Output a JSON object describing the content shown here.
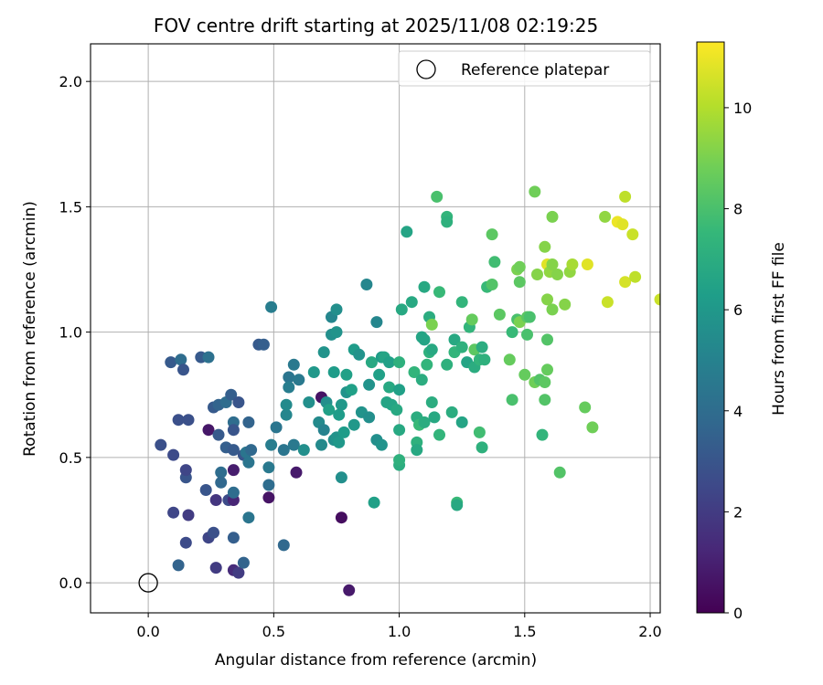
{
  "chart_data": {
    "type": "scatter",
    "title": "FOV centre drift starting at 2025/11/08 02:19:25",
    "xlabel": "Angular distance from reference (arcmin)",
    "ylabel": "Rotation from reference (arcmin)",
    "xlim": [
      -0.23,
      2.04
    ],
    "ylim": [
      -0.12,
      2.15
    ],
    "xticks": [
      0.0,
      0.5,
      1.0,
      1.5,
      2.0
    ],
    "xtick_labels": [
      "0.0",
      "0.5",
      "1.0",
      "1.5",
      "2.0"
    ],
    "yticks": [
      0.0,
      0.5,
      1.0,
      1.5,
      2.0
    ],
    "ytick_labels": [
      "0.0",
      "0.5",
      "1.0",
      "1.5",
      "2.0"
    ],
    "grid": true,
    "legend": {
      "position": "top-right",
      "label": "Reference platepar"
    },
    "reference_point": {
      "x": 0.0,
      "y": 0.0
    },
    "colorbar": {
      "label": "Hours from first FF file",
      "min": 0,
      "max": 11.3,
      "ticks": [
        0,
        2,
        4,
        6,
        8,
        10
      ],
      "tick_labels": [
        "0",
        "2",
        "4",
        "6",
        "8",
        "10"
      ],
      "colormap": [
        "#440154",
        "#482878",
        "#3e4989",
        "#31688e",
        "#26828e",
        "#1f9e89",
        "#35b779",
        "#6ece58",
        "#b5de2b",
        "#fde725"
      ]
    },
    "points": [
      {
        "x": 0.05,
        "y": 0.55,
        "h": 2.8
      },
      {
        "x": 0.09,
        "y": 0.88,
        "h": 3.2
      },
      {
        "x": 0.1,
        "y": 0.51,
        "h": 2.6
      },
      {
        "x": 0.1,
        "y": 0.28,
        "h": 2.4
      },
      {
        "x": 0.12,
        "y": 0.65,
        "h": 2.8
      },
      {
        "x": 0.12,
        "y": 0.07,
        "h": 3.6
      },
      {
        "x": 0.13,
        "y": 0.89,
        "h": 4.0
      },
      {
        "x": 0.14,
        "y": 0.85,
        "h": 3.0
      },
      {
        "x": 0.15,
        "y": 0.42,
        "h": 3.0
      },
      {
        "x": 0.15,
        "y": 0.45,
        "h": 2.4
      },
      {
        "x": 0.16,
        "y": 0.65,
        "h": 2.8
      },
      {
        "x": 0.15,
        "y": 0.16,
        "h": 2.6
      },
      {
        "x": 0.16,
        "y": 0.27,
        "h": 2.0
      },
      {
        "x": 0.21,
        "y": 0.9,
        "h": 3.2
      },
      {
        "x": 0.23,
        "y": 0.37,
        "h": 3.0
      },
      {
        "x": 0.24,
        "y": 0.61,
        "h": 0.7
      },
      {
        "x": 0.24,
        "y": 0.9,
        "h": 4.2
      },
      {
        "x": 0.24,
        "y": 0.18,
        "h": 2.4
      },
      {
        "x": 0.26,
        "y": 0.7,
        "h": 3.2
      },
      {
        "x": 0.26,
        "y": 0.2,
        "h": 2.8
      },
      {
        "x": 0.27,
        "y": 0.33,
        "h": 1.8
      },
      {
        "x": 0.27,
        "y": 0.06,
        "h": 2.0
      },
      {
        "x": 0.28,
        "y": 0.59,
        "h": 3.2
      },
      {
        "x": 0.28,
        "y": 0.71,
        "h": 3.6
      },
      {
        "x": 0.29,
        "y": 0.44,
        "h": 4.0
      },
      {
        "x": 0.29,
        "y": 0.4,
        "h": 3.8
      },
      {
        "x": 0.31,
        "y": 0.72,
        "h": 4.0
      },
      {
        "x": 0.31,
        "y": 0.54,
        "h": 3.4
      },
      {
        "x": 0.32,
        "y": 0.33,
        "h": 2.6
      },
      {
        "x": 0.33,
        "y": 0.75,
        "h": 3.4
      },
      {
        "x": 0.34,
        "y": 0.45,
        "h": 0.9
      },
      {
        "x": 0.34,
        "y": 0.33,
        "h": 1.2
      },
      {
        "x": 0.34,
        "y": 0.18,
        "h": 3.4
      },
      {
        "x": 0.34,
        "y": 0.64,
        "h": 4.0
      },
      {
        "x": 0.34,
        "y": 0.05,
        "h": 1.4
      },
      {
        "x": 0.34,
        "y": 0.61,
        "h": 3.0
      },
      {
        "x": 0.34,
        "y": 0.36,
        "h": 4.0
      },
      {
        "x": 0.34,
        "y": 0.53,
        "h": 3.2
      },
      {
        "x": 0.36,
        "y": 0.04,
        "h": 2.0
      },
      {
        "x": 0.36,
        "y": 0.72,
        "h": 3.0
      },
      {
        "x": 0.38,
        "y": 0.51,
        "h": 3.0
      },
      {
        "x": 0.38,
        "y": 0.08,
        "h": 3.6
      },
      {
        "x": 0.39,
        "y": 0.52,
        "h": 4.4
      },
      {
        "x": 0.4,
        "y": 0.64,
        "h": 3.6
      },
      {
        "x": 0.4,
        "y": 0.26,
        "h": 4.4
      },
      {
        "x": 0.4,
        "y": 0.48,
        "h": 4.4
      },
      {
        "x": 0.41,
        "y": 0.53,
        "h": 3.8
      },
      {
        "x": 0.44,
        "y": 0.95,
        "h": 3.2
      },
      {
        "x": 0.46,
        "y": 0.95,
        "h": 3.4
      },
      {
        "x": 0.48,
        "y": 0.39,
        "h": 4.0
      },
      {
        "x": 0.48,
        "y": 0.34,
        "h": 0.6
      },
      {
        "x": 0.49,
        "y": 0.55,
        "h": 4.8
      },
      {
        "x": 0.48,
        "y": 0.46,
        "h": 4.6
      },
      {
        "x": 0.49,
        "y": 1.1,
        "h": 4.8
      },
      {
        "x": 0.51,
        "y": 0.62,
        "h": 4.4
      },
      {
        "x": 0.54,
        "y": 0.53,
        "h": 4.4
      },
      {
        "x": 0.54,
        "y": 0.15,
        "h": 3.8
      },
      {
        "x": 0.55,
        "y": 0.67,
        "h": 5.2
      },
      {
        "x": 0.55,
        "y": 0.71,
        "h": 5.4
      },
      {
        "x": 0.56,
        "y": 0.82,
        "h": 4.4
      },
      {
        "x": 0.56,
        "y": 0.78,
        "h": 4.8
      },
      {
        "x": 0.58,
        "y": 0.55,
        "h": 4.6
      },
      {
        "x": 0.58,
        "y": 0.87,
        "h": 4.6
      },
      {
        "x": 0.59,
        "y": 0.44,
        "h": 0.8
      },
      {
        "x": 0.6,
        "y": 0.81,
        "h": 4.6
      },
      {
        "x": 0.62,
        "y": 0.53,
        "h": 5.6
      },
      {
        "x": 0.64,
        "y": 0.72,
        "h": 5.6
      },
      {
        "x": 0.66,
        "y": 0.84,
        "h": 6.0
      },
      {
        "x": 0.68,
        "y": 0.64,
        "h": 5.4
      },
      {
        "x": 0.69,
        "y": 0.74,
        "h": 0.6
      },
      {
        "x": 0.69,
        "y": 0.55,
        "h": 5.4
      },
      {
        "x": 0.7,
        "y": 0.61,
        "h": 5.0
      },
      {
        "x": 0.7,
        "y": 0.92,
        "h": 5.8
      },
      {
        "x": 0.71,
        "y": 0.72,
        "h": 5.6
      },
      {
        "x": 0.72,
        "y": 0.69,
        "h": 6.4
      },
      {
        "x": 0.73,
        "y": 0.99,
        "h": 5.6
      },
      {
        "x": 0.73,
        "y": 1.06,
        "h": 5.2
      },
      {
        "x": 0.74,
        "y": 0.57,
        "h": 5.6
      },
      {
        "x": 0.74,
        "y": 0.84,
        "h": 6.2
      },
      {
        "x": 0.75,
        "y": 0.58,
        "h": 5.8
      },
      {
        "x": 0.75,
        "y": 1.09,
        "h": 5.6
      },
      {
        "x": 0.75,
        "y": 1.0,
        "h": 5.8
      },
      {
        "x": 0.76,
        "y": 0.56,
        "h": 6.0
      },
      {
        "x": 0.76,
        "y": 0.67,
        "h": 6.2
      },
      {
        "x": 0.77,
        "y": 0.42,
        "h": 5.6
      },
      {
        "x": 0.77,
        "y": 0.71,
        "h": 6.0
      },
      {
        "x": 0.77,
        "y": 0.26,
        "h": 0.4
      },
      {
        "x": 0.78,
        "y": 0.6,
        "h": 6.2
      },
      {
        "x": 0.79,
        "y": 0.76,
        "h": 5.8
      },
      {
        "x": 0.79,
        "y": 0.83,
        "h": 6.4
      },
      {
        "x": 0.8,
        "y": -0.03,
        "h": 0.8
      },
      {
        "x": 0.81,
        "y": 0.77,
        "h": 6.4
      },
      {
        "x": 0.82,
        "y": 0.93,
        "h": 6.2
      },
      {
        "x": 0.82,
        "y": 0.63,
        "h": 6.0
      },
      {
        "x": 0.84,
        "y": 0.91,
        "h": 5.8
      },
      {
        "x": 0.85,
        "y": 0.68,
        "h": 5.8
      },
      {
        "x": 0.87,
        "y": 1.19,
        "h": 5.2
      },
      {
        "x": 0.88,
        "y": 0.79,
        "h": 5.8
      },
      {
        "x": 0.88,
        "y": 0.66,
        "h": 5.6
      },
      {
        "x": 0.89,
        "y": 0.88,
        "h": 6.8
      },
      {
        "x": 0.9,
        "y": 0.32,
        "h": 6.4
      },
      {
        "x": 0.91,
        "y": 1.04,
        "h": 5.2
      },
      {
        "x": 0.91,
        "y": 0.57,
        "h": 5.6
      },
      {
        "x": 0.92,
        "y": 0.83,
        "h": 6.4
      },
      {
        "x": 0.93,
        "y": 0.55,
        "h": 5.8
      },
      {
        "x": 0.93,
        "y": 0.9,
        "h": 6.2
      },
      {
        "x": 0.94,
        "y": 0.9,
        "h": 6.6
      },
      {
        "x": 0.95,
        "y": 0.72,
        "h": 6.6
      },
      {
        "x": 0.96,
        "y": 0.88,
        "h": 6.4
      },
      {
        "x": 0.96,
        "y": 0.78,
        "h": 6.8
      },
      {
        "x": 0.97,
        "y": 0.71,
        "h": 6.6
      },
      {
        "x": 0.99,
        "y": 0.69,
        "h": 6.8
      },
      {
        "x": 1.0,
        "y": 0.77,
        "h": 6.4
      },
      {
        "x": 1.0,
        "y": 0.88,
        "h": 7.2
      },
      {
        "x": 1.0,
        "y": 0.47,
        "h": 7.0
      },
      {
        "x": 1.0,
        "y": 0.49,
        "h": 7.2
      },
      {
        "x": 1.0,
        "y": 0.61,
        "h": 6.8
      },
      {
        "x": 1.01,
        "y": 1.09,
        "h": 6.8
      },
      {
        "x": 1.03,
        "y": 1.4,
        "h": 6.6
      },
      {
        "x": 1.05,
        "y": 1.12,
        "h": 6.8
      },
      {
        "x": 1.06,
        "y": 0.84,
        "h": 7.4
      },
      {
        "x": 1.07,
        "y": 0.56,
        "h": 7.2
      },
      {
        "x": 1.07,
        "y": 0.53,
        "h": 6.8
      },
      {
        "x": 1.07,
        "y": 0.66,
        "h": 7.0
      },
      {
        "x": 1.08,
        "y": 0.63,
        "h": 7.6
      },
      {
        "x": 1.09,
        "y": 0.98,
        "h": 6.6
      },
      {
        "x": 1.09,
        "y": 0.81,
        "h": 7.0
      },
      {
        "x": 1.1,
        "y": 1.18,
        "h": 6.8
      },
      {
        "x": 1.1,
        "y": 0.97,
        "h": 6.6
      },
      {
        "x": 1.1,
        "y": 0.64,
        "h": 7.0
      },
      {
        "x": 1.11,
        "y": 0.87,
        "h": 7.4
      },
      {
        "x": 1.12,
        "y": 0.92,
        "h": 7.2
      },
      {
        "x": 1.12,
        "y": 1.06,
        "h": 7.0
      },
      {
        "x": 1.13,
        "y": 1.03,
        "h": 9.0
      },
      {
        "x": 1.13,
        "y": 0.72,
        "h": 7.0
      },
      {
        "x": 1.13,
        "y": 0.93,
        "h": 6.8
      },
      {
        "x": 1.14,
        "y": 0.66,
        "h": 6.8
      },
      {
        "x": 1.15,
        "y": 1.54,
        "h": 8.0
      },
      {
        "x": 1.16,
        "y": 1.16,
        "h": 7.6
      },
      {
        "x": 1.16,
        "y": 0.59,
        "h": 7.4
      },
      {
        "x": 1.19,
        "y": 1.46,
        "h": 7.4
      },
      {
        "x": 1.19,
        "y": 1.44,
        "h": 7.2
      },
      {
        "x": 1.19,
        "y": 0.87,
        "h": 7.2
      },
      {
        "x": 1.21,
        "y": 0.68,
        "h": 7.0
      },
      {
        "x": 1.22,
        "y": 0.97,
        "h": 6.8
      },
      {
        "x": 1.22,
        "y": 0.92,
        "h": 7.4
      },
      {
        "x": 1.23,
        "y": 0.32,
        "h": 7.6
      },
      {
        "x": 1.23,
        "y": 0.31,
        "h": 6.8
      },
      {
        "x": 1.25,
        "y": 0.94,
        "h": 7.2
      },
      {
        "x": 1.25,
        "y": 1.12,
        "h": 7.4
      },
      {
        "x": 1.25,
        "y": 0.64,
        "h": 6.6
      },
      {
        "x": 1.27,
        "y": 0.88,
        "h": 6.6
      },
      {
        "x": 1.28,
        "y": 1.02,
        "h": 7.4
      },
      {
        "x": 1.29,
        "y": 1.05,
        "h": 8.6
      },
      {
        "x": 1.3,
        "y": 0.86,
        "h": 7.0
      },
      {
        "x": 1.3,
        "y": 0.93,
        "h": 8.4
      },
      {
        "x": 1.32,
        "y": 0.89,
        "h": 7.4
      },
      {
        "x": 1.32,
        "y": 0.6,
        "h": 7.8
      },
      {
        "x": 1.33,
        "y": 0.54,
        "h": 7.2
      },
      {
        "x": 1.33,
        "y": 0.94,
        "h": 7.0
      },
      {
        "x": 1.34,
        "y": 0.89,
        "h": 7.2
      },
      {
        "x": 1.35,
        "y": 1.18,
        "h": 7.6
      },
      {
        "x": 1.37,
        "y": 1.39,
        "h": 8.4
      },
      {
        "x": 1.37,
        "y": 1.19,
        "h": 8.2
      },
      {
        "x": 1.38,
        "y": 1.28,
        "h": 7.8
      },
      {
        "x": 1.4,
        "y": 1.07,
        "h": 8.4
      },
      {
        "x": 1.44,
        "y": 0.89,
        "h": 8.6
      },
      {
        "x": 1.45,
        "y": 0.73,
        "h": 8.0
      },
      {
        "x": 1.45,
        "y": 1.0,
        "h": 7.6
      },
      {
        "x": 1.47,
        "y": 1.05,
        "h": 8.0
      },
      {
        "x": 1.47,
        "y": 1.25,
        "h": 9.0
      },
      {
        "x": 1.48,
        "y": 1.04,
        "h": 9.0
      },
      {
        "x": 1.48,
        "y": 1.26,
        "h": 8.8
      },
      {
        "x": 1.48,
        "y": 1.2,
        "h": 8.4
      },
      {
        "x": 1.5,
        "y": 0.83,
        "h": 8.6
      },
      {
        "x": 1.51,
        "y": 1.06,
        "h": 8.4
      },
      {
        "x": 1.51,
        "y": 0.99,
        "h": 8.0
      },
      {
        "x": 1.52,
        "y": 1.06,
        "h": 8.0
      },
      {
        "x": 1.54,
        "y": 1.56,
        "h": 8.8
      },
      {
        "x": 1.54,
        "y": 0.8,
        "h": 8.8
      },
      {
        "x": 1.55,
        "y": 1.23,
        "h": 9.2
      },
      {
        "x": 1.56,
        "y": 0.81,
        "h": 8.2
      },
      {
        "x": 1.57,
        "y": 0.59,
        "h": 7.4
      },
      {
        "x": 1.58,
        "y": 0.73,
        "h": 8.2
      },
      {
        "x": 1.58,
        "y": 0.8,
        "h": 8.4
      },
      {
        "x": 1.58,
        "y": 1.34,
        "h": 9.2
      },
      {
        "x": 1.59,
        "y": 1.27,
        "h": 10.8
      },
      {
        "x": 1.59,
        "y": 1.13,
        "h": 9.2
      },
      {
        "x": 1.59,
        "y": 0.85,
        "h": 8.6
      },
      {
        "x": 1.59,
        "y": 0.97,
        "h": 8.2
      },
      {
        "x": 1.6,
        "y": 1.24,
        "h": 9.4
      },
      {
        "x": 1.61,
        "y": 1.46,
        "h": 9.0
      },
      {
        "x": 1.61,
        "y": 1.09,
        "h": 9.0
      },
      {
        "x": 1.61,
        "y": 1.27,
        "h": 9.2
      },
      {
        "x": 1.63,
        "y": 1.23,
        "h": 9.2
      },
      {
        "x": 1.64,
        "y": 0.44,
        "h": 8.2
      },
      {
        "x": 1.66,
        "y": 1.11,
        "h": 9.2
      },
      {
        "x": 1.68,
        "y": 1.24,
        "h": 9.4
      },
      {
        "x": 1.69,
        "y": 1.27,
        "h": 9.8
      },
      {
        "x": 1.74,
        "y": 0.7,
        "h": 8.6
      },
      {
        "x": 1.75,
        "y": 1.27,
        "h": 10.8
      },
      {
        "x": 1.77,
        "y": 0.62,
        "h": 8.8
      },
      {
        "x": 1.82,
        "y": 1.46,
        "h": 9.4
      },
      {
        "x": 1.83,
        "y": 1.12,
        "h": 10.4
      },
      {
        "x": 1.87,
        "y": 1.44,
        "h": 11.0
      },
      {
        "x": 1.89,
        "y": 1.43,
        "h": 10.8
      },
      {
        "x": 1.9,
        "y": 1.54,
        "h": 10.2
      },
      {
        "x": 1.9,
        "y": 1.2,
        "h": 10.6
      },
      {
        "x": 1.93,
        "y": 1.39,
        "h": 10.4
      },
      {
        "x": 1.94,
        "y": 1.22,
        "h": 10.2
      },
      {
        "x": 2.04,
        "y": 1.13,
        "h": 10.4
      }
    ]
  }
}
